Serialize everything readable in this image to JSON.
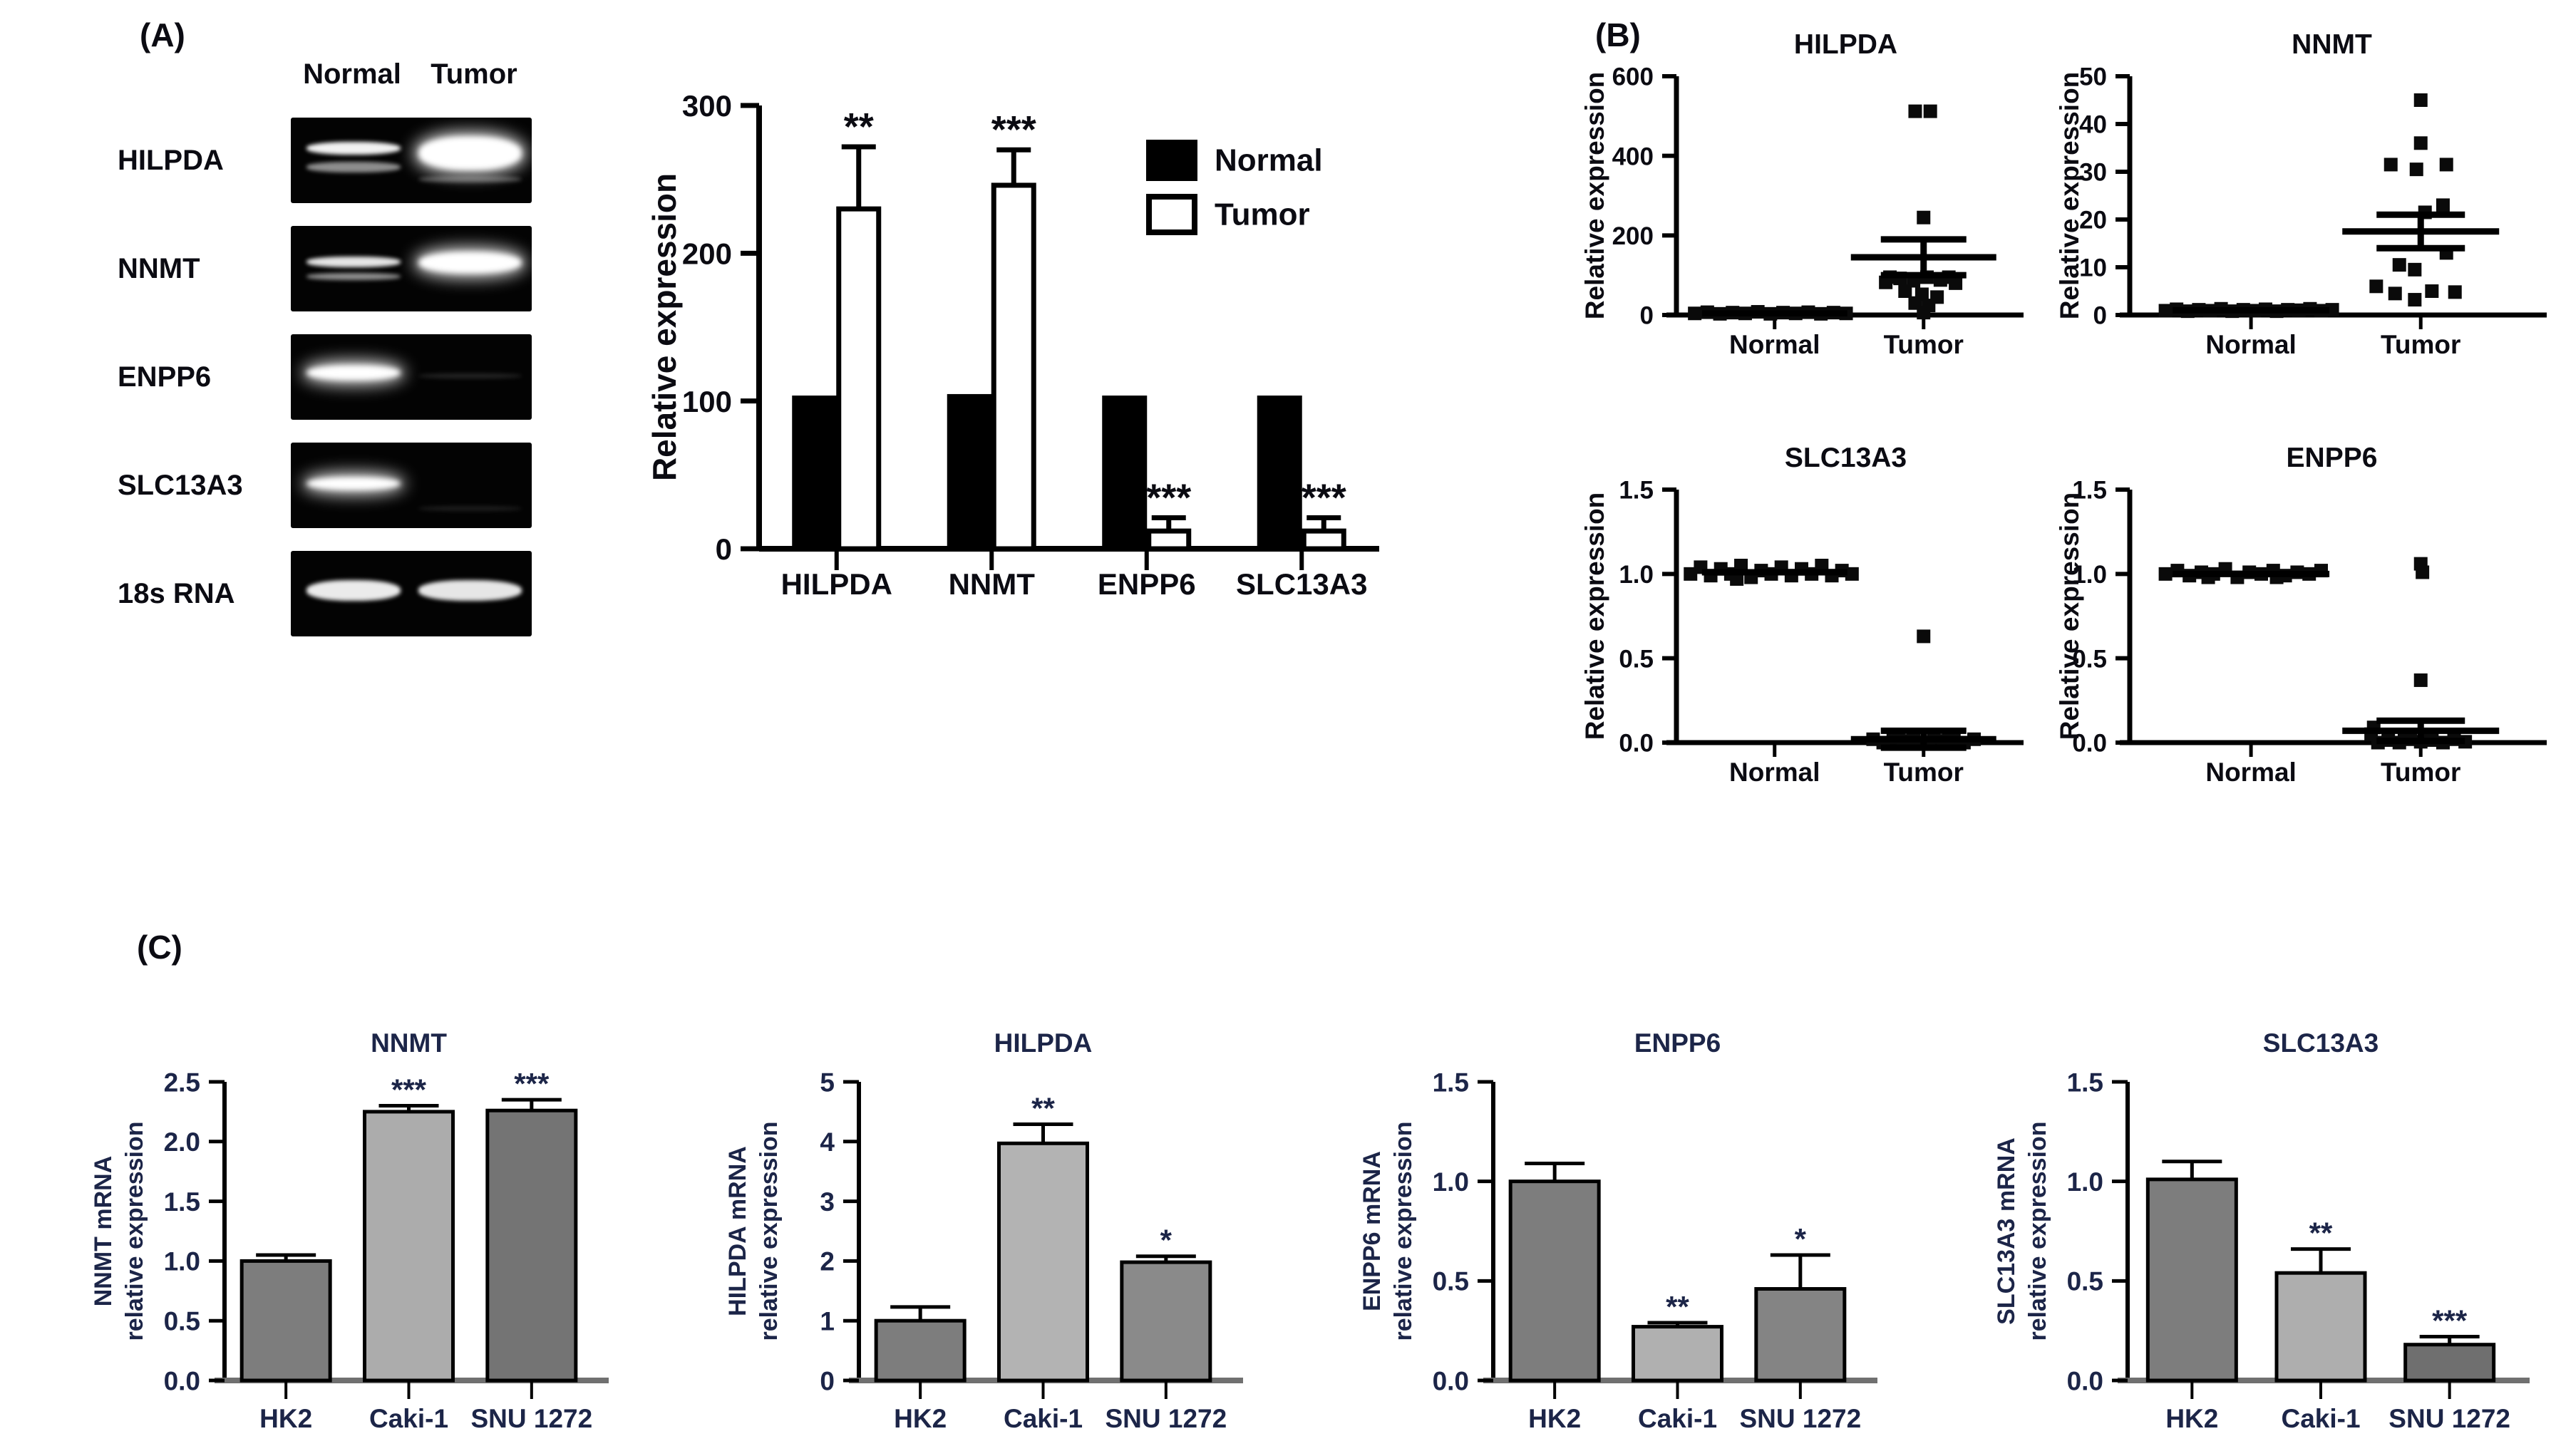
{
  "panel_a": {
    "label": "(A)",
    "gel": {
      "lane_headers": [
        "Normal",
        "Tumor"
      ],
      "rows": [
        {
          "label": "HILPDA",
          "bands": [
            {
              "lane": "normal",
              "y": 0.28,
              "h": 0.15,
              "o": 0.95,
              "glow": false
            },
            {
              "lane": "normal",
              "y": 0.52,
              "h": 0.12,
              "o": 0.55,
              "glow": false
            },
            {
              "lane": "tumor",
              "y": 0.22,
              "h": 0.4,
              "o": 1.0,
              "glow": true
            },
            {
              "lane": "tumor",
              "y": 0.68,
              "h": 0.08,
              "o": 0.3,
              "glow": false
            }
          ]
        },
        {
          "label": "NNMT",
          "bands": [
            {
              "lane": "normal",
              "y": 0.36,
              "h": 0.12,
              "o": 0.9,
              "glow": false
            },
            {
              "lane": "normal",
              "y": 0.55,
              "h": 0.08,
              "o": 0.55,
              "glow": false
            },
            {
              "lane": "tumor",
              "y": 0.3,
              "h": 0.26,
              "o": 1.0,
              "glow": true
            }
          ]
        },
        {
          "label": "ENPP6",
          "bands": [
            {
              "lane": "normal",
              "y": 0.36,
              "h": 0.18,
              "o": 1.0,
              "glow": true
            },
            {
              "lane": "tumor",
              "y": 0.46,
              "h": 0.06,
              "o": 0.13,
              "glow": false
            }
          ]
        },
        {
          "label": "SLC13A3",
          "bands": [
            {
              "lane": "normal",
              "y": 0.4,
              "h": 0.16,
              "o": 1.0,
              "glow": true
            },
            {
              "lane": "tumor",
              "y": 0.74,
              "h": 0.06,
              "o": 0.1,
              "glow": false
            }
          ]
        },
        {
          "label": "18s RNA",
          "bands": [
            {
              "lane": "normal",
              "y": 0.34,
              "h": 0.24,
              "o": 0.92,
              "glow": false
            },
            {
              "lane": "tumor",
              "y": 0.34,
              "h": 0.24,
              "o": 0.9,
              "glow": false
            }
          ]
        }
      ]
    }
  },
  "panel_b": {
    "label": "(B)"
  },
  "panel_c": {
    "label": "(C)"
  },
  "colors": {
    "normal_series": "#000000",
    "tumor_series": "#ffffff",
    "axis": "#000000",
    "text_dark": "#0b0b12",
    "text_navy": "#1c2548",
    "c_baseline": "#707070"
  },
  "chart_data": [
    {
      "id": "a-relative-expression",
      "type": "bar",
      "title": "",
      "ylabel_lines": [
        "Relative expression"
      ],
      "ylim": [
        0,
        300
      ],
      "ytick_vals": [
        0,
        100,
        200,
        300
      ],
      "ytick_labels": [
        "0",
        "100",
        "200",
        "300"
      ],
      "categories": [
        "HILPDA",
        "NNMT",
        "ENPP6",
        "SLC13A3"
      ],
      "series": [
        {
          "name": "Normal",
          "fill": "#000000",
          "values": [
            102,
            103,
            102,
            102
          ],
          "errors": [
            0,
            0,
            0,
            0
          ],
          "sig": [
            "",
            "",
            "",
            ""
          ]
        },
        {
          "name": "Tumor",
          "fill": "#ffffff",
          "values": [
            230,
            246,
            12,
            12
          ],
          "errors": [
            42,
            24,
            9,
            9
          ],
          "sig": [
            "**",
            "***",
            "***",
            "***"
          ]
        }
      ],
      "legend": [
        {
          "label": "Normal",
          "fill": "#000000"
        },
        {
          "label": "Tumor",
          "fill": "#ffffff"
        }
      ],
      "legend_position": "top-right",
      "grid": false
    },
    {
      "id": "b-hilpda",
      "type": "scatter",
      "title": "HILPDA",
      "ylabel_lines": [
        "Relative expression"
      ],
      "ylim": [
        0,
        600
      ],
      "ytick_vals": [
        0,
        200,
        400,
        600
      ],
      "ytick_labels": [
        "0",
        "200",
        "400",
        "600"
      ],
      "categories": [
        "Normal",
        "Tumor"
      ],
      "groups": [
        {
          "name": "Normal",
          "mean": 4,
          "sem": 0,
          "points": [
            [
              -0.95,
              4
            ],
            [
              -0.8,
              7
            ],
            [
              -0.65,
              3
            ],
            [
              -0.5,
              6
            ],
            [
              -0.35,
              4
            ],
            [
              -0.2,
              8
            ],
            [
              -0.05,
              3
            ],
            [
              0.1,
              6
            ],
            [
              0.25,
              4
            ],
            [
              0.4,
              7
            ],
            [
              0.55,
              3
            ],
            [
              0.7,
              6
            ],
            [
              0.85,
              4
            ]
          ]
        },
        {
          "name": "Tumor",
          "mean": 145,
          "sem": 45,
          "points": [
            [
              -0.1,
              512
            ],
            [
              0.08,
              512
            ],
            [
              0,
              245
            ],
            [
              -0.45,
              82
            ],
            [
              -0.28,
              92
            ],
            [
              -0.12,
              86
            ],
            [
              0.04,
              95
            ],
            [
              0.2,
              88
            ],
            [
              0.38,
              80
            ],
            [
              0.3,
              95
            ],
            [
              -0.4,
              95
            ],
            [
              -0.22,
              60
            ],
            [
              -0.02,
              52
            ],
            [
              0.16,
              45
            ],
            [
              -0.1,
              30
            ],
            [
              0.06,
              24
            ],
            [
              0,
              6
            ]
          ]
        }
      ],
      "grid": false
    },
    {
      "id": "b-nnmt",
      "type": "scatter",
      "title": "NNMT",
      "ylabel_lines": [
        "Relative expression"
      ],
      "ylim": [
        0,
        50
      ],
      "ytick_vals": [
        0,
        10,
        20,
        30,
        40,
        50
      ],
      "ytick_labels": [
        "0",
        "10",
        "20",
        "30",
        "40",
        "50"
      ],
      "categories": [
        "Normal",
        "Tumor"
      ],
      "groups": [
        {
          "name": "Normal",
          "mean": 1,
          "sem": 0,
          "points": [
            [
              -1,
              0.9
            ],
            [
              -0.87,
              1.2
            ],
            [
              -0.74,
              0.8
            ],
            [
              -0.61,
              1.1
            ],
            [
              -0.48,
              0.9
            ],
            [
              -0.35,
              1.3
            ],
            [
              -0.22,
              0.8
            ],
            [
              -0.09,
              1.1
            ],
            [
              0.04,
              0.9
            ],
            [
              0.17,
              1.2
            ],
            [
              0.3,
              0.8
            ],
            [
              0.43,
              1.1
            ],
            [
              0.56,
              1.0
            ],
            [
              0.69,
              1.3
            ],
            [
              0.82,
              0.9
            ],
            [
              0.95,
              1.1
            ]
          ]
        },
        {
          "name": "Tumor",
          "mean": 17.5,
          "sem": 3.5,
          "points": [
            [
              0,
              45
            ],
            [
              0,
              36
            ],
            [
              -0.35,
              31.5
            ],
            [
              -0.05,
              30.5
            ],
            [
              0.3,
              31.5
            ],
            [
              0.26,
              23
            ],
            [
              0.05,
              21.5
            ],
            [
              0.3,
              13
            ],
            [
              -0.25,
              10.5
            ],
            [
              -0.07,
              9.5
            ],
            [
              -0.52,
              6
            ],
            [
              -0.3,
              4.5
            ],
            [
              -0.07,
              3.2
            ],
            [
              0.13,
              5
            ],
            [
              0.4,
              4.8
            ]
          ]
        }
      ],
      "grid": false
    },
    {
      "id": "b-slc13a3",
      "type": "scatter",
      "title": "SLC13A3",
      "ylabel_lines": [
        "Relative expression"
      ],
      "ylim": [
        0,
        1.5
      ],
      "ytick_vals": [
        0,
        0.5,
        1,
        1.5
      ],
      "ytick_labels": [
        "0.0",
        "0.5",
        "1.0",
        "1.5"
      ],
      "categories": [
        "Normal",
        "Tumor"
      ],
      "groups": [
        {
          "name": "Normal",
          "mean": 1.01,
          "sem": 0,
          "points": [
            [
              -1,
              1.0
            ],
            [
              -0.88,
              1.04
            ],
            [
              -0.76,
              0.99
            ],
            [
              -0.64,
              1.03
            ],
            [
              -0.52,
              1.0
            ],
            [
              -0.4,
              1.05
            ],
            [
              -0.28,
              0.98
            ],
            [
              -0.16,
              1.02
            ],
            [
              -0.04,
              1.0
            ],
            [
              0.08,
              1.04
            ],
            [
              0.2,
              0.99
            ],
            [
              0.32,
              1.03
            ],
            [
              0.44,
              1.0
            ],
            [
              0.56,
              1.05
            ],
            [
              0.68,
              0.99
            ],
            [
              0.8,
              1.02
            ],
            [
              0.92,
              1.0
            ],
            [
              -0.45,
              0.97
            ]
          ]
        },
        {
          "name": "Tumor",
          "mean": 0.02,
          "sem": 0.05,
          "points": [
            [
              0,
              0.63
            ],
            [
              -0.6,
              0.02
            ],
            [
              -0.48,
              0
            ],
            [
              -0.36,
              0.03
            ],
            [
              -0.24,
              0.01
            ],
            [
              -0.12,
              0.02
            ],
            [
              0,
              0
            ],
            [
              0.12,
              0.03
            ],
            [
              0.24,
              0.01
            ],
            [
              0.36,
              0.02
            ],
            [
              0.48,
              0
            ],
            [
              0.6,
              0.02
            ],
            [
              -0.3,
              0.04
            ],
            [
              0.3,
              0.04
            ],
            [
              0.06,
              0
            ],
            [
              -0.18,
              0
            ]
          ]
        }
      ],
      "grid": false
    },
    {
      "id": "b-enpp6",
      "type": "scatter",
      "title": "ENPP6",
      "ylabel_lines": [
        "Relative expression"
      ],
      "ylim": [
        0,
        1.5
      ],
      "ytick_vals": [
        0,
        0.5,
        1,
        1.5
      ],
      "ytick_labels": [
        "0.0",
        "0.5",
        "1.0",
        "1.5"
      ],
      "categories": [
        "Normal",
        "Tumor"
      ],
      "groups": [
        {
          "name": "Normal",
          "mean": 1.0,
          "sem": 0,
          "points": [
            [
              -1,
              1.0
            ],
            [
              -0.86,
              1.02
            ],
            [
              -0.72,
              0.99
            ],
            [
              -0.58,
              1.01
            ],
            [
              -0.44,
              1.0
            ],
            [
              -0.3,
              1.03
            ],
            [
              -0.16,
              0.98
            ],
            [
              -0.02,
              1.01
            ],
            [
              0.12,
              1.0
            ],
            [
              0.26,
              1.02
            ],
            [
              0.4,
              0.99
            ],
            [
              0.54,
              1.01
            ],
            [
              0.68,
              1.0
            ],
            [
              0.82,
              1.02
            ],
            [
              -0.5,
              0.98
            ],
            [
              0.3,
              0.98
            ]
          ]
        },
        {
          "name": "Tumor",
          "mean": 0.07,
          "sem": 0.06,
          "points": [
            [
              0,
              1.06
            ],
            [
              0.02,
              1.01
            ],
            [
              0,
              0.37
            ],
            [
              -0.55,
              0.09
            ],
            [
              -0.58,
              0.05
            ],
            [
              -0.38,
              0.015
            ],
            [
              -0.25,
              0
            ],
            [
              -0.12,
              0.02
            ],
            [
              0,
              0.005
            ],
            [
              0.13,
              0.015
            ],
            [
              0.26,
              0
            ],
            [
              0.39,
              0.02
            ],
            [
              0.52,
              0.005
            ],
            [
              -0.5,
              0
            ],
            [
              0.07,
              0.03
            ],
            [
              -0.19,
              0.03
            ]
          ]
        }
      ],
      "grid": false
    },
    {
      "id": "c-nnmt",
      "type": "bar",
      "title": "NNMT",
      "ylabel_lines": [
        "NNMT mRNA",
        "relative expression"
      ],
      "ylim": [
        0,
        2.5
      ],
      "ytick_vals": [
        0,
        0.5,
        1,
        1.5,
        2,
        2.5
      ],
      "ytick_labels": [
        "0.0",
        "0.5",
        "1.0",
        "1.5",
        "2.0",
        "2.5"
      ],
      "categories": [
        "HK2",
        "Caki-1",
        "SNU 1272"
      ],
      "series": [
        {
          "name": "",
          "values": [
            1.0,
            2.25,
            2.26
          ],
          "errors": [
            0.05,
            0.05,
            0.09
          ],
          "sig": [
            "",
            "***",
            "***"
          ],
          "fills": [
            "#7d7d7d",
            "#acacac",
            "#747474"
          ]
        }
      ],
      "grid": false
    },
    {
      "id": "c-hilpda",
      "type": "bar",
      "title": "HILPDA",
      "ylabel_lines": [
        "HILPDA mRNA",
        "relative expression"
      ],
      "ylim": [
        0,
        5
      ],
      "ytick_vals": [
        0,
        1,
        2,
        3,
        4,
        5
      ],
      "ytick_labels": [
        "0",
        "1",
        "2",
        "3",
        "4",
        "5"
      ],
      "categories": [
        "HK2",
        "Caki-1",
        "SNU 1272"
      ],
      "series": [
        {
          "name": "",
          "values": [
            1.0,
            3.97,
            1.98
          ],
          "errors": [
            0.23,
            0.32,
            0.1
          ],
          "sig": [
            "",
            "**",
            "*"
          ],
          "fills": [
            "#7d7d7d",
            "#b3b3b3",
            "#8a8a8a"
          ]
        }
      ],
      "grid": false
    },
    {
      "id": "c-enpp6",
      "type": "bar",
      "title": "ENPP6",
      "ylabel_lines": [
        "ENPP6 mRNA",
        "relative expression"
      ],
      "ylim": [
        0,
        1.5
      ],
      "ytick_vals": [
        0,
        0.5,
        1,
        1.5
      ],
      "ytick_labels": [
        "0.0",
        "0.5",
        "1.0",
        "1.5"
      ],
      "categories": [
        "HK2",
        "Caki-1",
        "SNU 1272"
      ],
      "series": [
        {
          "name": "",
          "values": [
            1.0,
            0.27,
            0.46
          ],
          "errors": [
            0.09,
            0.02,
            0.17
          ],
          "sig": [
            "",
            "**",
            "*"
          ],
          "fills": [
            "#7d7d7d",
            "#b0b0b0",
            "#848484"
          ]
        }
      ],
      "grid": false
    },
    {
      "id": "c-slc13a3",
      "type": "bar",
      "title": "SLC13A3",
      "ylabel_lines": [
        "SLC13A3 mRNA",
        "relative expression"
      ],
      "ylim": [
        0,
        1.5
      ],
      "ytick_vals": [
        0,
        0.5,
        1,
        1.5
      ],
      "ytick_labels": [
        "0.0",
        "0.5",
        "1.0",
        "1.5"
      ],
      "categories": [
        "HK2",
        "Caki-1",
        "SNU 1272"
      ],
      "series": [
        {
          "name": "",
          "values": [
            1.01,
            0.54,
            0.18
          ],
          "errors": [
            0.09,
            0.12,
            0.04
          ],
          "sig": [
            "",
            "**",
            "***"
          ],
          "fills": [
            "#7d7d7d",
            "#aeaeae",
            "#6f6f6f"
          ]
        }
      ],
      "grid": false
    }
  ]
}
